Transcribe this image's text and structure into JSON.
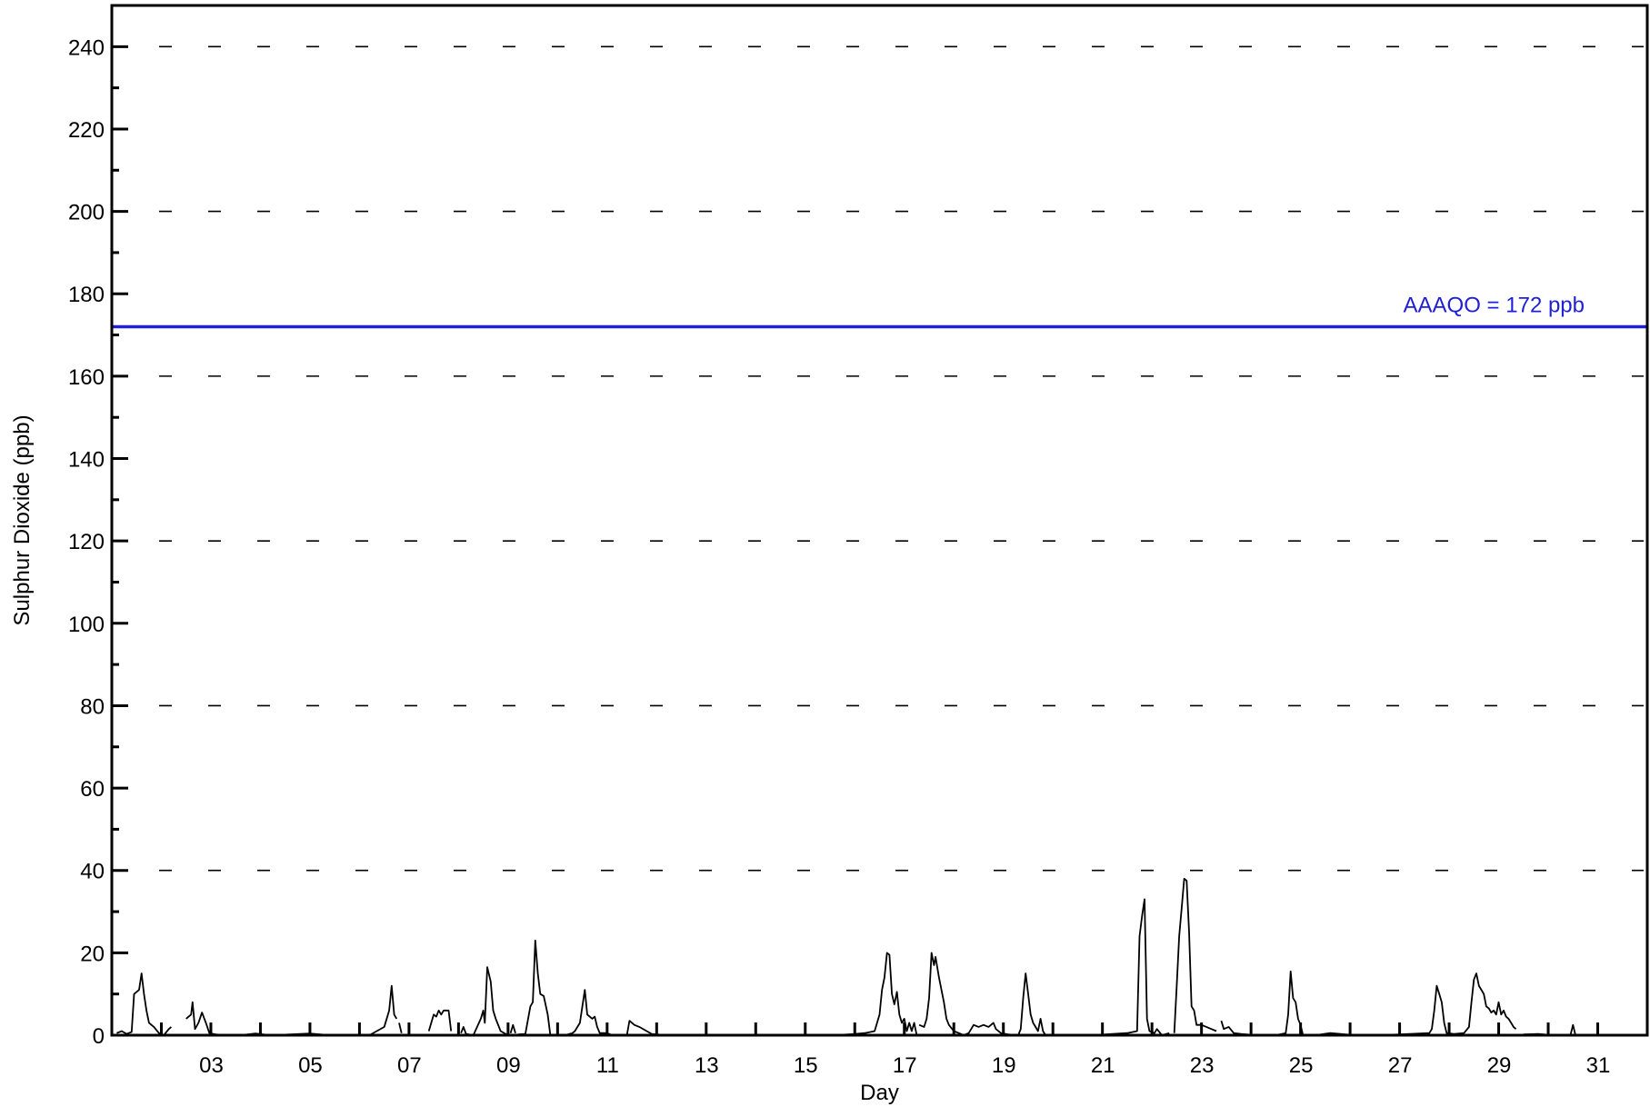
{
  "chart_data": {
    "type": "line",
    "xlabel": "Day",
    "ylabel": "Sulphur Dioxide (ppb)",
    "xlim": [
      1,
      32
    ],
    "ylim": [
      0,
      250
    ],
    "x_ticks": [
      "03",
      "05",
      "07",
      "09",
      "11",
      "13",
      "15",
      "17",
      "19",
      "21",
      "23",
      "25",
      "27",
      "29",
      "31"
    ],
    "y_ticks": [
      0,
      20,
      40,
      60,
      80,
      100,
      120,
      140,
      160,
      180,
      200,
      220,
      240
    ],
    "gridlines": [
      40,
      80,
      120,
      160,
      200,
      240
    ],
    "grid": "dashed horizontal",
    "reference_line": {
      "value": 172,
      "label": "AAAQO = 172 ppb",
      "color": "#1f1fd6"
    },
    "series": [
      {
        "line_color": "#000000",
        "points": [
          [
            1.1,
            0.5
          ],
          [
            1.2,
            1
          ],
          [
            1.3,
            0.3
          ],
          [
            1.4,
            0.8
          ],
          [
            1.45,
            10
          ],
          [
            1.5,
            10.5
          ],
          [
            1.55,
            11
          ],
          [
            1.6,
            15
          ],
          [
            1.65,
            10
          ],
          [
            1.7,
            6
          ],
          [
            1.75,
            3
          ],
          [
            1.85,
            2
          ],
          [
            1.95,
            0.5
          ],
          [
            2.05,
            0
          ],
          [
            2.15,
            1.5
          ],
          [
            2.2,
            2
          ],
          null,
          [
            2.5,
            4
          ],
          [
            2.6,
            5
          ],
          [
            2.63,
            8
          ],
          [
            2.68,
            1.5
          ],
          [
            2.75,
            3
          ],
          [
            2.82,
            5.5
          ],
          [
            2.9,
            3
          ],
          [
            2.97,
            0.5
          ],
          [
            3.1,
            0.2
          ],
          [
            3.3,
            0
          ],
          [
            3.6,
            0
          ],
          [
            3.9,
            0.4
          ],
          [
            4.2,
            0
          ],
          [
            4.6,
            0.2
          ],
          [
            5.0,
            0.4
          ],
          [
            5.4,
            0
          ],
          [
            5.9,
            0
          ],
          [
            6.2,
            0
          ],
          [
            6.5,
            2
          ],
          [
            6.6,
            6
          ],
          [
            6.65,
            12
          ],
          [
            6.7,
            5
          ],
          [
            6.75,
            4
          ],
          null,
          [
            6.8,
            3
          ],
          [
            6.85,
            0.5
          ],
          null,
          [
            7.4,
            1
          ],
          [
            7.5,
            5
          ],
          [
            7.55,
            4.5
          ],
          [
            7.6,
            6
          ],
          [
            7.65,
            5
          ],
          [
            7.7,
            6
          ],
          [
            7.8,
            6
          ],
          [
            7.85,
            1
          ],
          null,
          [
            8.05,
            0.5
          ],
          [
            8.1,
            2
          ],
          [
            8.15,
            0.3
          ],
          [
            8.3,
            0
          ],
          [
            8.45,
            4
          ],
          [
            8.5,
            6
          ],
          [
            8.53,
            3
          ],
          [
            8.58,
            16.5
          ],
          [
            8.65,
            13
          ],
          [
            8.7,
            6
          ],
          [
            8.75,
            4
          ],
          [
            8.85,
            1
          ],
          [
            9.0,
            0
          ],
          null,
          [
            9.05,
            0.5
          ],
          [
            9.1,
            2.5
          ],
          [
            9.15,
            0.5
          ],
          null,
          [
            9.2,
            0.2
          ],
          [
            9.35,
            0.3
          ],
          [
            9.45,
            7
          ],
          [
            9.5,
            8
          ],
          [
            9.55,
            23
          ],
          [
            9.6,
            15
          ],
          [
            9.65,
            10
          ],
          [
            9.72,
            9.5
          ],
          [
            9.8,
            5
          ],
          [
            9.85,
            0.3
          ],
          null,
          [
            10.15,
            0
          ],
          [
            10.3,
            0.5
          ],
          [
            10.35,
            1
          ],
          [
            10.45,
            3
          ],
          [
            10.5,
            7
          ],
          [
            10.55,
            11
          ],
          [
            10.6,
            5
          ],
          [
            10.7,
            4
          ],
          [
            10.75,
            4.5
          ],
          [
            10.8,
            2
          ],
          [
            10.85,
            0.5
          ],
          [
            11.0,
            0.5
          ],
          [
            11.1,
            0
          ],
          [
            11.4,
            0
          ],
          [
            11.45,
            3.5
          ],
          [
            11.55,
            2.5
          ],
          [
            11.65,
            2
          ],
          [
            11.8,
            1
          ],
          [
            11.9,
            0.3
          ],
          [
            12.2,
            0
          ],
          [
            12.7,
            0
          ],
          [
            13.3,
            0
          ],
          [
            13.9,
            0
          ],
          [
            14.5,
            0
          ],
          [
            15.1,
            0
          ],
          [
            15.6,
            0
          ],
          [
            16.0,
            0.3
          ],
          [
            16.2,
            0.5
          ],
          [
            16.4,
            1
          ],
          [
            16.5,
            5
          ],
          [
            16.55,
            11
          ],
          [
            16.6,
            14
          ],
          [
            16.65,
            20
          ],
          [
            16.7,
            19.5
          ],
          [
            16.75,
            10
          ],
          [
            16.8,
            7.5
          ],
          [
            16.85,
            10.5
          ],
          [
            16.9,
            5
          ],
          [
            16.95,
            3
          ],
          [
            17.0,
            4
          ],
          [
            17.05,
            1
          ],
          [
            17.1,
            3
          ],
          [
            17.15,
            1
          ],
          [
            17.2,
            3
          ],
          [
            17.25,
            0
          ],
          null,
          [
            17.3,
            2.5
          ],
          [
            17.4,
            2
          ],
          [
            17.45,
            4
          ],
          [
            17.5,
            9
          ],
          [
            17.55,
            20
          ],
          [
            17.6,
            17
          ],
          [
            17.63,
            19
          ],
          [
            17.7,
            14
          ],
          [
            17.8,
            8
          ],
          [
            17.85,
            4
          ],
          [
            17.9,
            2.5
          ],
          [
            18.0,
            1
          ],
          [
            18.1,
            0.5
          ],
          [
            18.2,
            0
          ],
          [
            18.3,
            0.5
          ],
          [
            18.4,
            2.5
          ],
          [
            18.5,
            2
          ],
          [
            18.6,
            2.5
          ],
          [
            18.7,
            2
          ],
          [
            18.8,
            3
          ],
          [
            18.85,
            1.5
          ],
          [
            18.95,
            0.5
          ],
          [
            19.1,
            0.2
          ],
          [
            19.3,
            0
          ],
          [
            19.35,
            1.5
          ],
          [
            19.4,
            9
          ],
          [
            19.45,
            15
          ],
          [
            19.5,
            10
          ],
          [
            19.55,
            5
          ],
          [
            19.6,
            3
          ],
          [
            19.65,
            2
          ],
          [
            19.7,
            1
          ],
          [
            19.75,
            4
          ],
          [
            19.8,
            1
          ],
          [
            19.85,
            0
          ],
          [
            20.3,
            0
          ],
          [
            20.8,
            0
          ],
          [
            21.2,
            0.3
          ],
          [
            21.5,
            0.5
          ],
          [
            21.7,
            1
          ],
          [
            21.75,
            24
          ],
          [
            21.8,
            29
          ],
          [
            21.85,
            33
          ],
          [
            21.9,
            4
          ],
          [
            21.95,
            1
          ],
          [
            22.05,
            0.5
          ],
          [
            22.1,
            1.5
          ],
          [
            22.2,
            0
          ],
          [
            22.35,
            0.5
          ],
          null,
          [
            22.45,
            0.5
          ],
          [
            22.5,
            12
          ],
          [
            22.55,
            24
          ],
          [
            22.6,
            31
          ],
          [
            22.65,
            38
          ],
          [
            22.7,
            37.5
          ],
          [
            22.75,
            25
          ],
          [
            22.8,
            7
          ],
          [
            22.85,
            6
          ],
          [
            22.9,
            2.5
          ],
          [
            23.0,
            2.5
          ],
          [
            23.1,
            2
          ],
          [
            23.2,
            1.5
          ],
          [
            23.3,
            1
          ],
          null,
          [
            23.4,
            3.5
          ],
          [
            23.45,
            1.5
          ],
          [
            23.55,
            2
          ],
          [
            23.65,
            0.5
          ],
          [
            23.8,
            0.3
          ],
          [
            24.1,
            0
          ],
          [
            24.5,
            0
          ],
          [
            24.7,
            0.5
          ],
          [
            24.75,
            5
          ],
          [
            24.8,
            15.5
          ],
          [
            24.85,
            9
          ],
          [
            24.9,
            8
          ],
          [
            24.95,
            4
          ],
          [
            25.0,
            2.5
          ],
          [
            25.05,
            0
          ],
          null,
          [
            25.3,
            0
          ],
          [
            25.6,
            0.5
          ],
          [
            26.1,
            0
          ],
          [
            26.6,
            0
          ],
          [
            27.2,
            0.3
          ],
          [
            27.6,
            0.5
          ],
          [
            27.65,
            1.5
          ],
          [
            27.7,
            6
          ],
          [
            27.75,
            12
          ],
          [
            27.8,
            10
          ],
          [
            27.85,
            8
          ],
          [
            27.9,
            3
          ],
          [
            27.95,
            0.5
          ],
          [
            28.1,
            0.3
          ],
          [
            28.3,
            0.5
          ],
          [
            28.4,
            2
          ],
          [
            28.45,
            8
          ],
          [
            28.5,
            13.5
          ],
          [
            28.55,
            15
          ],
          [
            28.6,
            12
          ],
          [
            28.65,
            11
          ],
          [
            28.7,
            10
          ],
          [
            28.75,
            7
          ],
          [
            28.8,
            6.5
          ],
          [
            28.85,
            5.5
          ],
          [
            28.9,
            6
          ],
          [
            28.95,
            5
          ],
          [
            29.0,
            8
          ],
          [
            29.05,
            5
          ],
          [
            29.1,
            6
          ],
          [
            29.15,
            4.5
          ],
          [
            29.2,
            4
          ],
          [
            29.25,
            3
          ],
          [
            29.3,
            2
          ],
          [
            29.35,
            1.5
          ],
          null,
          [
            29.5,
            0.2
          ],
          [
            29.8,
            0.3
          ],
          [
            30.1,
            0
          ],
          [
            30.45,
            0
          ],
          [
            30.5,
            2.5
          ],
          [
            30.55,
            0
          ],
          null,
          [
            31.0,
            0
          ],
          [
            31.5,
            0
          ]
        ]
      }
    ]
  }
}
